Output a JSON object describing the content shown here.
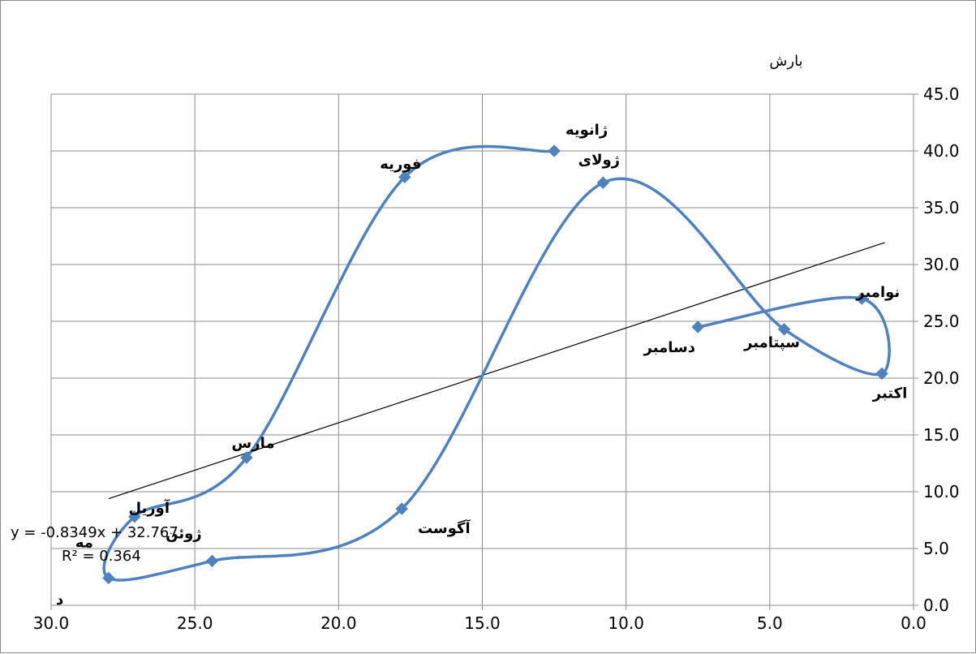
{
  "chart_data": {
    "type": "scatter",
    "title": "بارش",
    "xlim": [
      30.0,
      0.0
    ],
    "ylim": [
      0.0,
      45.0
    ],
    "x_reversed": true,
    "y_axis_position": "right",
    "grid": true,
    "x_ticks": [
      "30.0",
      "25.0",
      "20.0",
      "15.0",
      "10.0",
      "5.0",
      "0.0"
    ],
    "y_ticks": [
      "0.0",
      "5.0",
      "10.0",
      "15.0",
      "20.0",
      "25.0",
      "30.0",
      "35.0",
      "40.0",
      "45.0"
    ],
    "series": [
      {
        "color": "#4f81bd",
        "smooth": true,
        "points": [
          {
            "label": "ژانویه",
            "x": 12.5,
            "y": 40.0
          },
          {
            "label": "فوریه",
            "x": 17.7,
            "y": 37.7
          },
          {
            "label": "مارس",
            "x": 23.2,
            "y": 13.0
          },
          {
            "label": "آوریل",
            "x": 27.1,
            "y": 7.8
          },
          {
            "label": "مه",
            "x": 28.0,
            "y": 2.4
          },
          {
            "label": "ژوئن",
            "x": 24.4,
            "y": 3.9
          },
          {
            "label": "ژولای",
            "x": 10.8,
            "y": 37.2
          },
          {
            "label": "آگوست",
            "x": 17.8,
            "y": 8.5
          },
          {
            "label": "سپتامبر",
            "x": 4.5,
            "y": 24.3
          },
          {
            "label": "اکتبر",
            "x": 1.1,
            "y": 20.4
          },
          {
            "label": "نوامبر",
            "x": 1.8,
            "y": 27.0
          },
          {
            "label": "دسامبر",
            "x": 7.5,
            "y": 24.5
          }
        ],
        "path_order": [
          "ژانویه",
          "فوریه",
          "مارس",
          "آوریل",
          "مه",
          "ژوئن",
          "آگوست",
          "ژولای",
          "سپتامبر",
          "اکتبر",
          "نوامبر",
          "دسامبر"
        ]
      }
    ],
    "trendline": {
      "type": "linear",
      "slope": -0.8349,
      "intercept": 32.767,
      "x_range": [
        28.0,
        1.0
      ],
      "color": "#000000",
      "equation": "y = -0.8349x + 32.767",
      "r2": "R² = 0.364"
    },
    "extra_text": "د"
  }
}
